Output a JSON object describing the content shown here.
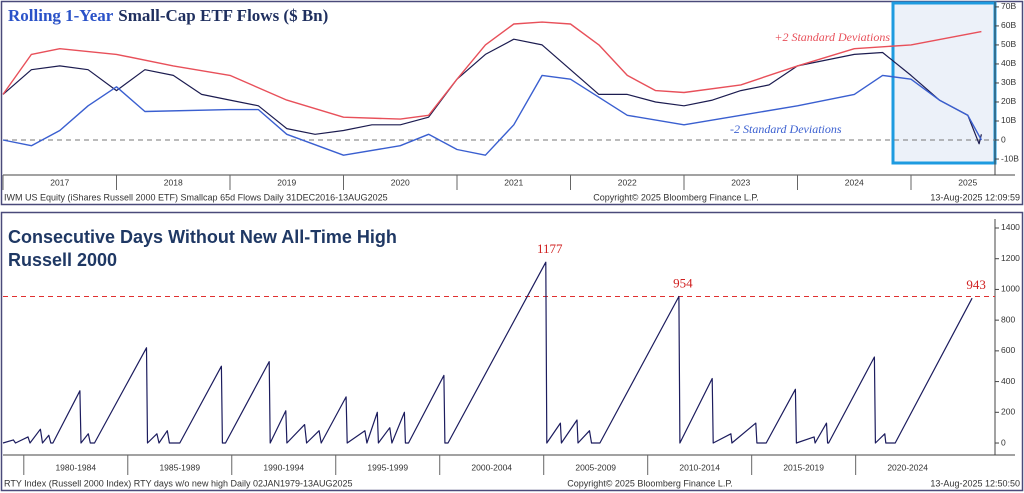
{
  "chart_data": [
    {
      "type": "line",
      "title": [
        "Rolling 1-Year",
        "Small-Cap ETF Flows ($ Bn)"
      ],
      "annotations": [
        "+2 Standard Deviations",
        "-2 Standard Deviations"
      ],
      "footer": [
        "IWM US Equity (iShares Russell 2000 ETF) Smallcap 65d Flows  Daily 31DEC2016-13AUG2025",
        "Copyright© 2025 Bloomberg Finance L.P.",
        "13-Aug-2025 12:09:59"
      ],
      "xlim": [
        2017,
        2025.74
      ],
      "xticks": [
        2017,
        2018,
        2019,
        2020,
        2021,
        2022,
        2023,
        2024,
        2025
      ],
      "ylim": [
        -18.4,
        71
      ],
      "yticks": [
        {
          "value": -10,
          "label": "-10B"
        },
        0,
        {
          "value": 10,
          "label": "10B"
        },
        {
          "value": 20,
          "label": "20B"
        },
        {
          "value": 30,
          "label": "30B"
        },
        {
          "value": 40,
          "label": "40B"
        },
        {
          "value": 50,
          "label": "50B"
        },
        {
          "value": 60,
          "label": "60B"
        },
        {
          "value": 70,
          "label": "70B"
        }
      ],
      "reference_line": 0,
      "reference_color": "#777777",
      "series": [
        {
          "name": "Flows",
          "color": "#1c1c50",
          "x": [
            2017.0,
            2017.25,
            2017.5,
            2017.75,
            2018.0,
            2018.25,
            2018.5,
            2018.75,
            2019.0,
            2019.25,
            2019.5,
            2019.75,
            2020.0,
            2020.25,
            2020.5,
            2020.75,
            2021.0,
            2021.25,
            2021.5,
            2021.75,
            2022.0,
            2022.25,
            2022.5,
            2022.75,
            2023.0,
            2023.25,
            2023.5,
            2023.75,
            2024.0,
            2024.25,
            2024.5,
            2024.75,
            2025.0,
            2025.25,
            2025.5,
            2025.6,
            2025.62
          ],
          "values": [
            24,
            37,
            39,
            37,
            26,
            37,
            34,
            24,
            21,
            18,
            6,
            3,
            5,
            8,
            8,
            12,
            32,
            45,
            53,
            50,
            37,
            24,
            24,
            20,
            18,
            21,
            26,
            29,
            39,
            42,
            45,
            46,
            34,
            21,
            13,
            -2,
            3
          ]
        },
        {
          "name": "+2 SD",
          "color": "#e8505a",
          "x": [
            2017.0,
            2017.25,
            2017.5,
            2018.0,
            2018.5,
            2019.0,
            2019.5,
            2020.0,
            2020.5,
            2020.75,
            2021.0,
            2021.25,
            2021.5,
            2021.75,
            2022.0,
            2022.25,
            2022.5,
            2022.75,
            2023.0,
            2023.5,
            2024.0,
            2024.5,
            2025.0,
            2025.62
          ],
          "values": [
            24,
            45,
            48,
            45,
            39,
            34,
            21,
            12,
            11,
            13,
            32,
            50,
            61,
            62,
            61,
            50,
            34,
            26,
            25,
            29,
            39,
            48,
            50,
            57
          ]
        },
        {
          "name": "-2 SD",
          "color": "#3a5fd0",
          "x": [
            2017.0,
            2017.25,
            2017.5,
            2017.75,
            2018.0,
            2018.25,
            2019.0,
            2019.25,
            2019.5,
            2020.0,
            2020.5,
            2020.75,
            2021.0,
            2021.25,
            2021.5,
            2021.75,
            2022.0,
            2022.5,
            2023.0,
            2023.5,
            2024.0,
            2024.5,
            2024.75,
            2025.0,
            2025.25,
            2025.5,
            2025.62
          ],
          "values": [
            0,
            -3,
            5,
            18,
            28,
            15,
            16,
            16,
            3,
            -8,
            -3,
            3,
            -5,
            -8,
            8,
            34,
            32,
            13,
            8,
            13,
            18,
            24,
            34,
            32,
            21,
            13,
            0
          ]
        }
      ]
    },
    {
      "type": "line",
      "title": "Consecutive Days Without New All-Time High",
      "subtitle": "Russell 2000",
      "footer": [
        "RTY Index (Russell 2000 Index) RTY days w/o new high  Daily 02JAN1979-13AUG2025",
        "Copyright© 2025 Bloomberg Finance L.P.",
        "13-Aug-2025 12:50:50"
      ],
      "xlim": [
        1979,
        2026.7
      ],
      "xticks": [
        {
          "value": 1980,
          "label": "1980-1984"
        },
        {
          "value": 1985,
          "label": "1985-1989"
        },
        {
          "value": 1990,
          "label": "1990-1994"
        },
        {
          "value": 1995,
          "label": "1995-1999"
        },
        {
          "value": 2000,
          "label": "2000-2004"
        },
        {
          "value": 2005,
          "label": "2005-2009"
        },
        {
          "value": 2010,
          "label": "2010-2014"
        },
        {
          "value": 2015,
          "label": "2015-2019"
        },
        {
          "value": 2020,
          "label": "2020-2024"
        }
      ],
      "ylim": [
        -78,
        1439
      ],
      "yticks": [
        0,
        200,
        400,
        600,
        800,
        1000,
        1200,
        1400
      ],
      "reference_line": 954,
      "reference_color": "#e03030",
      "series": [
        {
          "name": "RTY days w/o new high",
          "color": "#1c1c5e",
          "x": [
            1979.0,
            1979.5,
            1979.6,
            1980.2,
            1980.3,
            1980.8,
            1980.9,
            1981.2,
            1981.3,
            1981.4,
            1982.7,
            1982.75,
            1983.1,
            1983.2,
            1983.4,
            1985.9,
            1985.95,
            1986.4,
            1986.5,
            1986.9,
            1987.0,
            1987.5,
            1989.5,
            1989.55,
            1989.7,
            1991.8,
            1991.85,
            1992.6,
            1992.65,
            1993.5,
            1993.6,
            1994.2,
            1994.3,
            1995.5,
            1995.55,
            1996.4,
            1996.5,
            1997.0,
            1997.05,
            1997.6,
            1997.7,
            1998.3,
            1998.35,
            1998.5,
            2000.2,
            2000.25,
            2000.4,
            2005.1,
            2005.15,
            2005.8,
            2005.85,
            2006.6,
            2006.65,
            2007.2,
            2007.3,
            2007.7,
            2011.5,
            2011.55,
            2013.1,
            2013.15,
            2014.0,
            2014.05,
            2015.2,
            2015.25,
            2015.7,
            2017.1,
            2017.15,
            2018.0,
            2018.05,
            2018.6,
            2018.65,
            2018.7,
            2020.9,
            2020.95,
            2021.4,
            2021.45,
            2021.9,
            2025.6
          ],
          "values": [
            0,
            20,
            0,
            40,
            0,
            90,
            0,
            50,
            0,
            0,
            340,
            0,
            60,
            0,
            0,
            620,
            0,
            60,
            0,
            80,
            0,
            0,
            500,
            0,
            0,
            530,
            0,
            210,
            0,
            120,
            0,
            80,
            0,
            300,
            0,
            80,
            0,
            200,
            0,
            100,
            0,
            200,
            0,
            0,
            440,
            0,
            0,
            1177,
            0,
            130,
            0,
            150,
            0,
            80,
            0,
            0,
            954,
            0,
            420,
            0,
            60,
            0,
            130,
            0,
            0,
            350,
            0,
            40,
            0,
            130,
            0,
            0,
            560,
            0,
            60,
            0,
            0,
            943
          ]
        }
      ]
    }
  ]
}
